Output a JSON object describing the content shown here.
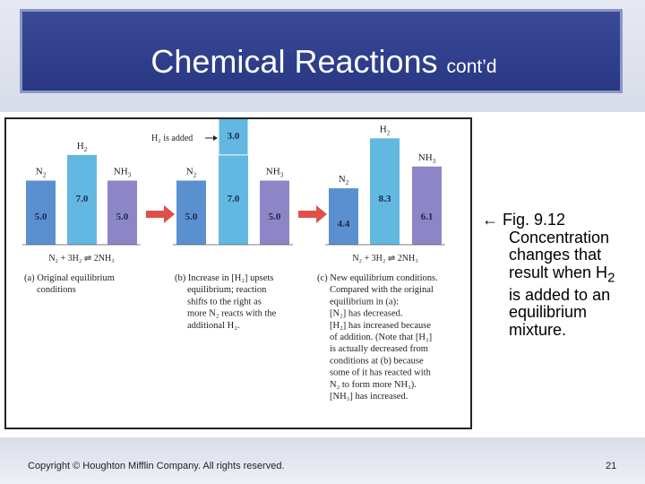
{
  "slide": {
    "title": "Chemical Reactions",
    "title_suffix": "cont’d",
    "copyright": "Copyright © Houghton Mifflin Company. All rights reserved.",
    "page_number": "21"
  },
  "caption": {
    "arrow": "←",
    "fig_number": "Fig. 9.12",
    "lines": [
      "Concentration",
      "changes that",
      "result when H",
      "is added to an",
      "equilibrium",
      "mixture."
    ],
    "h2_subscript": "2"
  },
  "figure": {
    "species": [
      "N",
      "H",
      "NH"
    ],
    "subscripts": [
      "2",
      "2",
      "3"
    ],
    "colors": {
      "n2": "#5a8fd0",
      "h2": "#62b8e0",
      "nh3": "#8d86c6",
      "arrow": "#e0504a"
    },
    "added_label": "H₂ is added",
    "panels": [
      {
        "values": [
          "5.0",
          "7.0",
          "5.0"
        ],
        "levels": [
          5.0,
          7.0,
          5.0
        ],
        "equation": "N₂ + 3H₂ ⇌ 2NH₃",
        "caption_lines": [
          "(a) Original equilibrium",
          "conditions"
        ]
      },
      {
        "values": [
          "5.0",
          "7.0",
          "5.0"
        ],
        "levels": [
          5.0,
          7.0,
          5.0
        ],
        "added_value": "3.0",
        "added_level": 3.0,
        "equation": "",
        "caption_lines": [
          "(b) Increase in [H₂] upsets",
          "equilibrium; reaction",
          "shifts to the right as",
          "more N₂ reacts with the",
          "additional H₂."
        ]
      },
      {
        "values": [
          "4.4",
          "8.3",
          "6.1"
        ],
        "levels": [
          4.4,
          8.3,
          6.1
        ],
        "equation": "N₂ + 3H₂ ⇌ 2NH₃",
        "caption_lines": [
          "(c) New equilibrium conditions.",
          "Compared with the original",
          "equilibrium in (a):",
          "[N₂] has decreased.",
          "[H₂] has increased because",
          "of addition. (Note that [H₂]",
          "is actually decreased from",
          "conditions at (b) because",
          "some of it has reacted with",
          "N₂ to form more NH₃).",
          "[NH₃] has increased."
        ]
      }
    ]
  }
}
